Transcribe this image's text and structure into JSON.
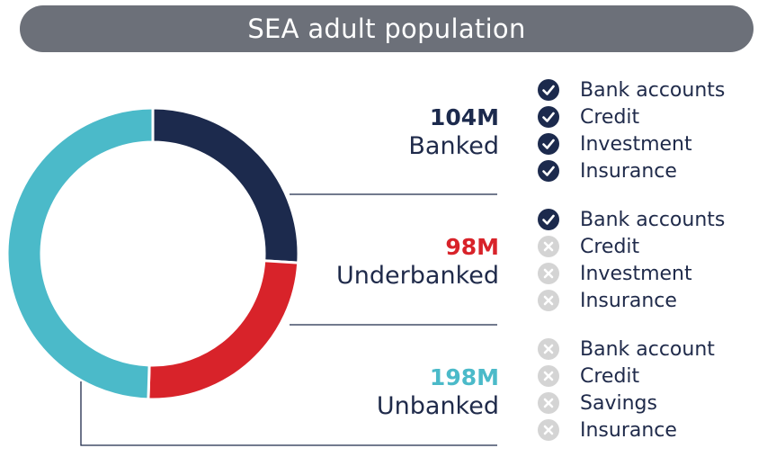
{
  "title": "SEA adult population",
  "colors": {
    "banked": "#1c2a4d",
    "underbanked": "#d8232a",
    "unbanked": "#4bbac9",
    "title_bar": "#6c7079",
    "check_icon": "#1c2a4d",
    "cross_icon": "#d4d4d4",
    "connector": "#1f2a4a"
  },
  "chart_data": {
    "type": "pie",
    "title": "SEA adult population",
    "donut": true,
    "series": [
      {
        "label": "Banked",
        "value_label": "104M",
        "value": 104,
        "color": "#1c2a4d"
      },
      {
        "label": "Underbanked",
        "value_label": "98M",
        "value": 98,
        "color": "#d8232a"
      },
      {
        "label": "Unbanked",
        "value_label": "198M",
        "value": 198,
        "color": "#4bbac9"
      }
    ]
  },
  "segments": [
    {
      "value_label": "104M",
      "name": "Banked",
      "features": [
        {
          "label": "Bank accounts",
          "icon": "check-icon"
        },
        {
          "label": "Credit",
          "icon": "check-icon"
        },
        {
          "label": "Investment",
          "icon": "check-icon"
        },
        {
          "label": "Insurance",
          "icon": "check-icon"
        }
      ]
    },
    {
      "value_label": "98M",
      "name": "Underbanked",
      "features": [
        {
          "label": "Bank accounts",
          "icon": "check-icon"
        },
        {
          "label": "Credit",
          "icon": "cross-icon"
        },
        {
          "label": "Investment",
          "icon": "cross-icon"
        },
        {
          "label": "Insurance",
          "icon": "cross-icon"
        }
      ]
    },
    {
      "value_label": "198M",
      "name": "Unbanked",
      "features": [
        {
          "label": "Bank account",
          "icon": "cross-icon"
        },
        {
          "label": "Credit",
          "icon": "cross-icon"
        },
        {
          "label": "Savings",
          "icon": "cross-icon"
        },
        {
          "label": "Insurance",
          "icon": "cross-icon"
        }
      ]
    }
  ]
}
